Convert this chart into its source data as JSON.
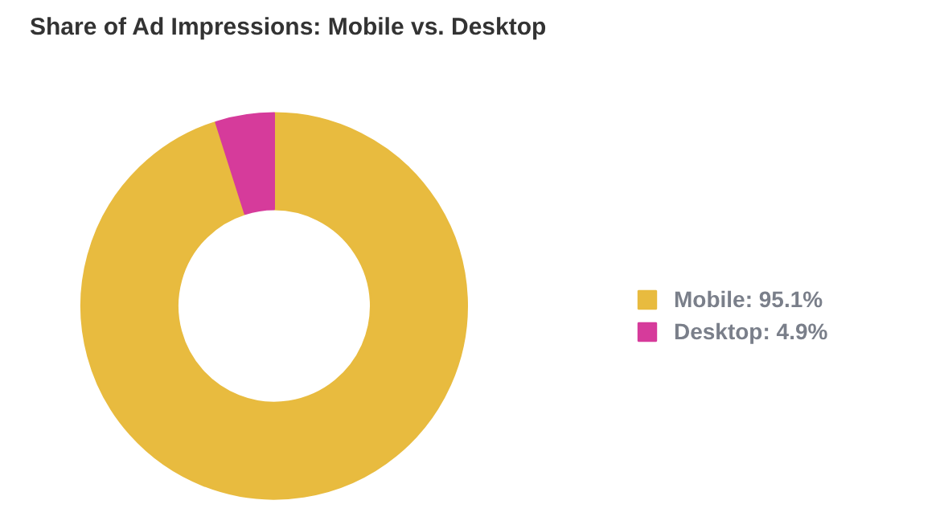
{
  "chart_data": {
    "type": "donut",
    "title": "Share of Ad Impressions: Mobile vs. Desktop",
    "categories": [
      "Mobile: 95.1%",
      "Desktop: 4.9%"
    ],
    "values": [
      95.1,
      4.9
    ],
    "colors": [
      "#e8bb3f",
      "#d63b9b"
    ],
    "legend": "right"
  }
}
